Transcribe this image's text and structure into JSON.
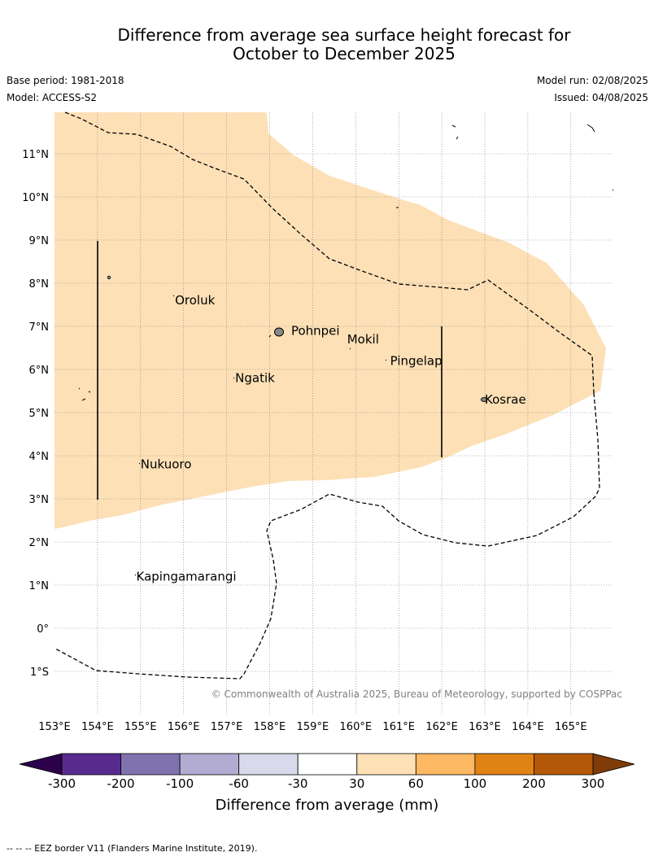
{
  "title_line1": "Difference from average sea surface height forecast for",
  "title_line2": "October to December 2025",
  "base_period": "Base period: 1981-2018",
  "model": "Model: ACCESS-S2",
  "model_run": "Model run: 02/08/2025",
  "issued": "Issued: 04/08/2025",
  "map": {
    "lon_range": [
      153,
      166
    ],
    "lat_range": [
      -2,
      12
    ],
    "lon_ticks": [
      "153°E",
      "154°E",
      "155°E",
      "156°E",
      "157°E",
      "158°E",
      "159°E",
      "160°E",
      "161°E",
      "162°E",
      "163°E",
      "164°E",
      "165°E"
    ],
    "lat_ticks": [
      "11°N",
      "10°N",
      "9°N",
      "8°N",
      "7°N",
      "6°N",
      "5°N",
      "4°N",
      "3°N",
      "2°N",
      "1°N",
      "0°",
      "1°S"
    ],
    "places": [
      {
        "name": "Oroluk",
        "lon": 155.8,
        "lat": 7.6
      },
      {
        "name": "Pohnpei",
        "lon": 158.5,
        "lat": 6.9
      },
      {
        "name": "Mokil",
        "lon": 159.8,
        "lat": 6.7
      },
      {
        "name": "Pingelap",
        "lon": 160.8,
        "lat": 6.2
      },
      {
        "name": "Ngatik",
        "lon": 157.2,
        "lat": 5.8
      },
      {
        "name": "Kosrae",
        "lon": 163.0,
        "lat": 5.3
      },
      {
        "name": "Nukuoro",
        "lon": 155.0,
        "lat": 3.8
      },
      {
        "name": "Kapingamarangi",
        "lon": 154.9,
        "lat": 1.2
      }
    ],
    "anomaly_fill_color": "#fde0b6",
    "copyright": "© Commonwealth of Australia 2025, Bureau of Meteorology, supported by COSPPac"
  },
  "colorbar": {
    "ticks": [
      "-300",
      "-200",
      "-100",
      "-60",
      "-30",
      "30",
      "60",
      "100",
      "200",
      "300"
    ],
    "colors": [
      "#582a8e",
      "#8072ae",
      "#b2abd2",
      "#d8daeb",
      "#ffffff",
      "#fee0b6",
      "#fdb863",
      "#e08214",
      "#b35806"
    ],
    "low_extend_color": "#2d004b",
    "high_extend_color": "#7f3b08",
    "label": "Difference from average (mm)"
  },
  "footnote": "--  --  -- EEZ border V11 (Flanders Marine Institute, 2019)."
}
